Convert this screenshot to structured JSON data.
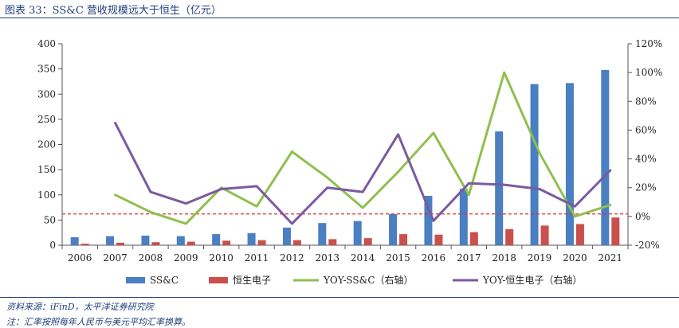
{
  "title": "图表 33：SS&C 营收规模远大于恒生（亿元）",
  "source": "资料来源：iFinD，太平洋证券研究院",
  "note": "注：汇率按照每年人民币与美元平均汇率换算。",
  "chart_data": {
    "type": "bar",
    "categories": [
      "2006",
      "2007",
      "2008",
      "2009",
      "2010",
      "2011",
      "2012",
      "2013",
      "2014",
      "2015",
      "2016",
      "2017",
      "2018",
      "2019",
      "2020",
      "2021"
    ],
    "series": [
      {
        "name": "SS&C",
        "kind": "bar",
        "axis": "left",
        "color": "#4a7fc1",
        "values": [
          16,
          18,
          19,
          18,
          22,
          24,
          35,
          44,
          48,
          62,
          98,
          112,
          226,
          320,
          322,
          348
        ]
      },
      {
        "name": "恒生电子",
        "kind": "bar",
        "axis": "left",
        "color": "#c9504b",
        "values": [
          3,
          5,
          6,
          7,
          9,
          10,
          10,
          12,
          14,
          22,
          21,
          26,
          32,
          39,
          42,
          55
        ]
      },
      {
        "name": "YOY-SS&C（右轴）",
        "kind": "line",
        "axis": "right",
        "color": "#8fc04e",
        "values": [
          null,
          15,
          3,
          -5,
          20,
          7,
          45,
          27,
          6,
          31,
          58,
          15,
          100,
          44,
          0,
          8
        ]
      },
      {
        "name": "YOY-恒生电子（右轴）",
        "kind": "line",
        "axis": "right",
        "color": "#7a5aa0",
        "values": [
          null,
          65,
          17,
          9,
          19,
          21,
          -5,
          20,
          17,
          57,
          -3,
          23,
          22,
          19,
          7,
          32
        ]
      }
    ],
    "ylim": [
      0,
      400
    ],
    "yticks": [
      "0",
      "50",
      "100",
      "150",
      "200",
      "250",
      "300",
      "350",
      "400"
    ],
    "y2lim": [
      -20,
      120
    ],
    "y2ticks": [
      "-20%",
      "0%",
      "20%",
      "40%",
      "60%",
      "80%",
      "100%",
      "120%"
    ],
    "reference_line": {
      "value": 62,
      "color": "#e03030",
      "style": "dashed"
    },
    "legend_placement": "bottom",
    "grid": false
  }
}
